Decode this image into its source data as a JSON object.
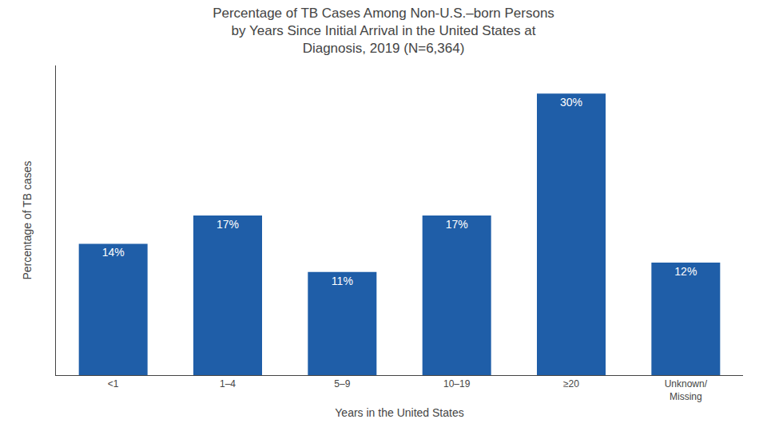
{
  "chart_data": {
    "type": "bar",
    "title": "Percentage of TB Cases Among Non-U.S.–born Persons\nby Years Since Initial Arrival in the United States at\nDiagnosis, 2019 (N=6,364)",
    "xlabel": "Years in the United States",
    "ylabel": "Percentage of TB cases",
    "categories": [
      "<1",
      "1–4",
      "5–9",
      "10–19",
      "≥20",
      "Unknown/\nMissing"
    ],
    "values": [
      14,
      17,
      11,
      17,
      30,
      12
    ],
    "value_labels": [
      "14%",
      "17%",
      "11%",
      "17%",
      "30%",
      "12%"
    ],
    "data_labels": true,
    "color": "#1F5EA8",
    "ylim": [
      0,
      33
    ],
    "grid": false,
    "tick_labels": "x"
  }
}
